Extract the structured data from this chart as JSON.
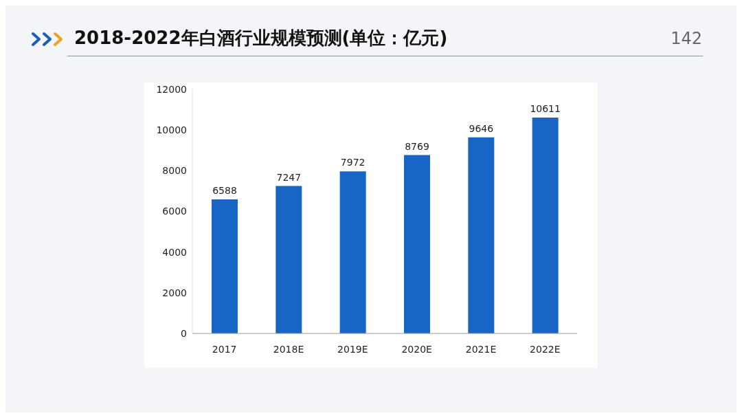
{
  "chart_data": {
    "type": "bar",
    "title": "2018-2022年白酒行业规模预测(单位：亿元)",
    "categories": [
      "2017",
      "2018E",
      "2019E",
      "2020E",
      "2021E",
      "2022E"
    ],
    "values": [
      6588,
      7247,
      7972,
      8769,
      9646,
      10611
    ],
    "color": "#1766c6",
    "ylim": [
      0,
      12000
    ],
    "yticks": [
      0,
      2000,
      4000,
      6000,
      8000,
      10000,
      12000
    ],
    "grid": false,
    "data_labels": true,
    "annotations": [
      "142"
    ]
  }
}
